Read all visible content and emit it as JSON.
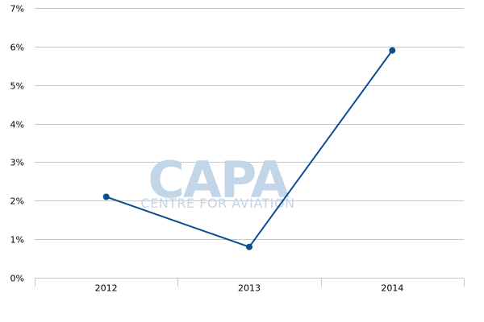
{
  "watermark": {
    "main": "CAPA",
    "sub": "CENTRE FOR AVIATION",
    "color": "#c2d6e8"
  },
  "colors": {
    "series": "#0b4f91",
    "grid": "#c7c7c7"
  },
  "chart_data": {
    "type": "line",
    "title": "",
    "xlabel": "",
    "ylabel": "",
    "categories": [
      "2012",
      "2013",
      "2014"
    ],
    "series": [
      {
        "values": [
          2.1,
          0.8,
          5.9
        ],
        "color": "#0b4f91"
      }
    ],
    "ylim": [
      0,
      7
    ],
    "yticks": [
      0,
      1,
      2,
      3,
      4,
      5,
      6,
      7
    ],
    "ytick_labels": [
      "0%",
      "1%",
      "2%",
      "3%",
      "4%",
      "5%",
      "6%",
      "7%"
    ],
    "grid": true,
    "legend": "none"
  }
}
